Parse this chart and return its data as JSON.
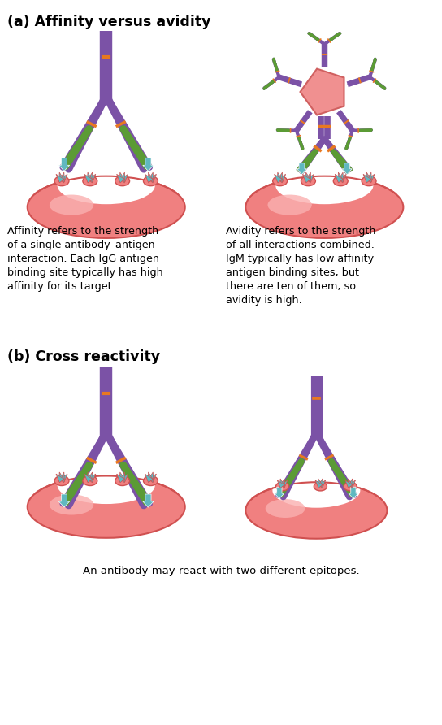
{
  "title_a": "(a) Affinity versus avidity",
  "title_b": "(b) Cross reactivity",
  "text_affinity": "Affinity refers to the strength\nof a single antibody–antigen\ninteraction. Each IgG antigen\nbinding site typically has high\naffinity for its target.",
  "text_avidity": "Avidity refers to the strength\nof all interactions combined.\nIgM typically has low affinity\nantigen binding sites, but\nthere are ten of them, so\navidity is high.",
  "text_cross": "An antibody may react with two different epitopes.",
  "purple": "#7B52A6",
  "purple_light": "#9B7DC0",
  "green": "#5B9B35",
  "orange": "#E87820",
  "antigen_fill": "#F08080",
  "antigen_edge": "#D05050",
  "antigen_highlight": "#FAB0B0",
  "pentagon_fill": "#F09090",
  "pentagon_edge": "#D06060",
  "teal": "#60B8C0",
  "bg": "#FFFFFF"
}
